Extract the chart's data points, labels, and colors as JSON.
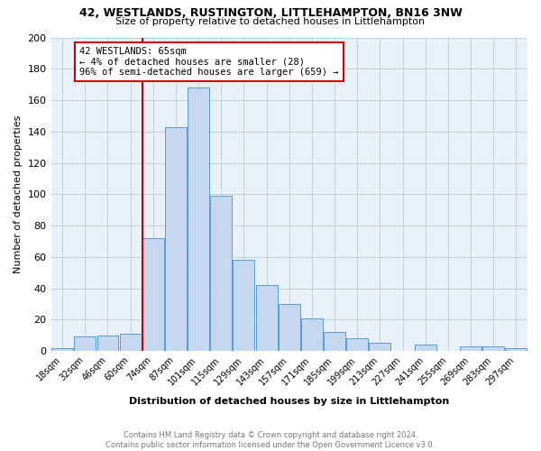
{
  "title": "42, WESTLANDS, RUSTINGTON, LITTLEHAMPTON, BN16 3NW",
  "subtitle": "Size of property relative to detached houses in Littlehampton",
  "xlabel": "Distribution of detached houses by size in Littlehampton",
  "ylabel": "Number of detached properties",
  "footer_line1": "Contains HM Land Registry data © Crown copyright and database right 2024.",
  "footer_line2": "Contains public sector information licensed under the Open Government Licence v3.0.",
  "bin_labels": [
    "18sqm",
    "32sqm",
    "46sqm",
    "60sqm",
    "74sqm",
    "87sqm",
    "101sqm",
    "115sqm",
    "129sqm",
    "143sqm",
    "157sqm",
    "171sqm",
    "185sqm",
    "199sqm",
    "213sqm",
    "227sqm",
    "241sqm",
    "255sqm",
    "269sqm",
    "283sqm",
    "297sqm"
  ],
  "counts": [
    2,
    9,
    10,
    11,
    72,
    143,
    168,
    99,
    58,
    42,
    30,
    21,
    12,
    8,
    5,
    0,
    4,
    0,
    3,
    3,
    2
  ],
  "bar_color": "#c5d8f0",
  "bar_edge_color": "#5a9bd5",
  "vline_x_index": 4,
  "vline_color": "#cc0000",
  "annotation_title": "42 WESTLANDS: 65sqm",
  "annotation_line1": "← 4% of detached houses are smaller (28)",
  "annotation_line2": "96% of semi-detached houses are larger (659) →",
  "annotation_box_color": "#cc0000",
  "ylim": [
    0,
    200
  ],
  "yticks": [
    0,
    20,
    40,
    60,
    80,
    100,
    120,
    140,
    160,
    180,
    200
  ],
  "background_color": "#ffffff",
  "ax_background_color": "#e8f0f8",
  "grid_color": "#c0cfe0",
  "title_fontsize": 9,
  "subtitle_fontsize": 8
}
